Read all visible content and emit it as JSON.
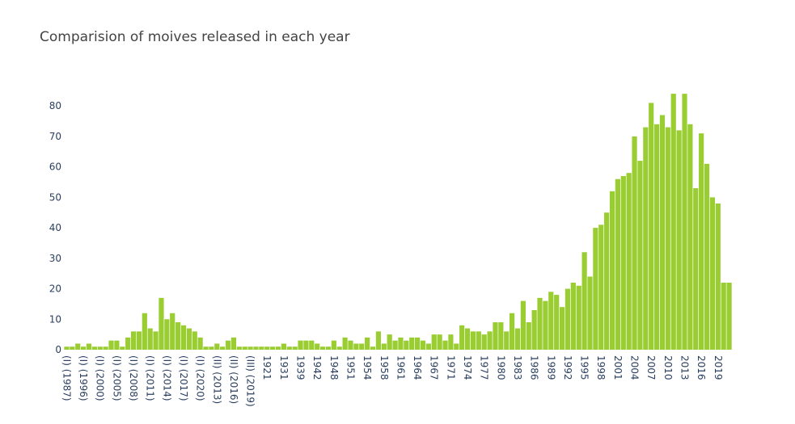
{
  "chart_data": {
    "type": "bar",
    "title": "Comparision of moives released in each year",
    "categories": [
      "(I) (1987)",
      null,
      null,
      "(I) (1996)",
      null,
      null,
      "(I) (2000)",
      null,
      null,
      "(I) (2005)",
      null,
      null,
      "(I) (2008)",
      null,
      null,
      "(I) (2011)",
      null,
      null,
      "(I) (2014)",
      null,
      null,
      "(I) (2017)",
      null,
      null,
      "(I) (2020)",
      null,
      null,
      "(II) (2013)",
      null,
      null,
      "(II) (2016)",
      null,
      null,
      "(III) (2019)",
      null,
      null,
      "1921",
      null,
      null,
      "1931",
      null,
      null,
      "1939",
      null,
      null,
      "1942",
      null,
      null,
      "1948",
      null,
      null,
      "1951",
      null,
      null,
      "1954",
      null,
      null,
      "1958",
      null,
      null,
      "1961",
      null,
      null,
      "1964",
      null,
      null,
      "1967",
      null,
      null,
      "1971",
      null,
      null,
      "1974",
      null,
      null,
      "1977",
      null,
      null,
      "1980",
      null,
      null,
      "1983",
      null,
      null,
      "1986",
      null,
      null,
      "1989",
      null,
      null,
      "1992",
      null,
      null,
      "1995",
      null,
      null,
      "1998",
      null,
      null,
      "2001",
      null,
      null,
      "2004",
      null,
      null,
      "2007",
      null,
      null,
      "2010",
      null,
      null,
      "2013",
      null,
      null,
      "2016",
      null,
      null,
      "2019",
      null,
      null
    ],
    "values": [
      1,
      1,
      2,
      1,
      2,
      1,
      1,
      1,
      3,
      3,
      1,
      4,
      6,
      6,
      12,
      7,
      6,
      17,
      10,
      12,
      9,
      8,
      7,
      6,
      4,
      1,
      1,
      2,
      1,
      3,
      4,
      1,
      1,
      1,
      1,
      1,
      1,
      1,
      1,
      2,
      1,
      1,
      3,
      3,
      3,
      2,
      1,
      1,
      3,
      1,
      4,
      3,
      2,
      2,
      4,
      1,
      6,
      2,
      5,
      3,
      4,
      3,
      4,
      4,
      3,
      2,
      5,
      5,
      3,
      5,
      2,
      8,
      7,
      6,
      6,
      5,
      6,
      9,
      9,
      6,
      12,
      7,
      16,
      9,
      13,
      17,
      16,
      19,
      18,
      14,
      20,
      22,
      21,
      32,
      24,
      40,
      41,
      45,
      52,
      56,
      57,
      58,
      70,
      62,
      73,
      81,
      74,
      77,
      73,
      84,
      72,
      84,
      74,
      53,
      71,
      61,
      50,
      48,
      22,
      22
    ],
    "color": "#9acd32",
    "ylim": [
      0,
      88
    ],
    "yticks": [
      0,
      10,
      20,
      30,
      40,
      50,
      60,
      70,
      80
    ],
    "grid": false
  }
}
